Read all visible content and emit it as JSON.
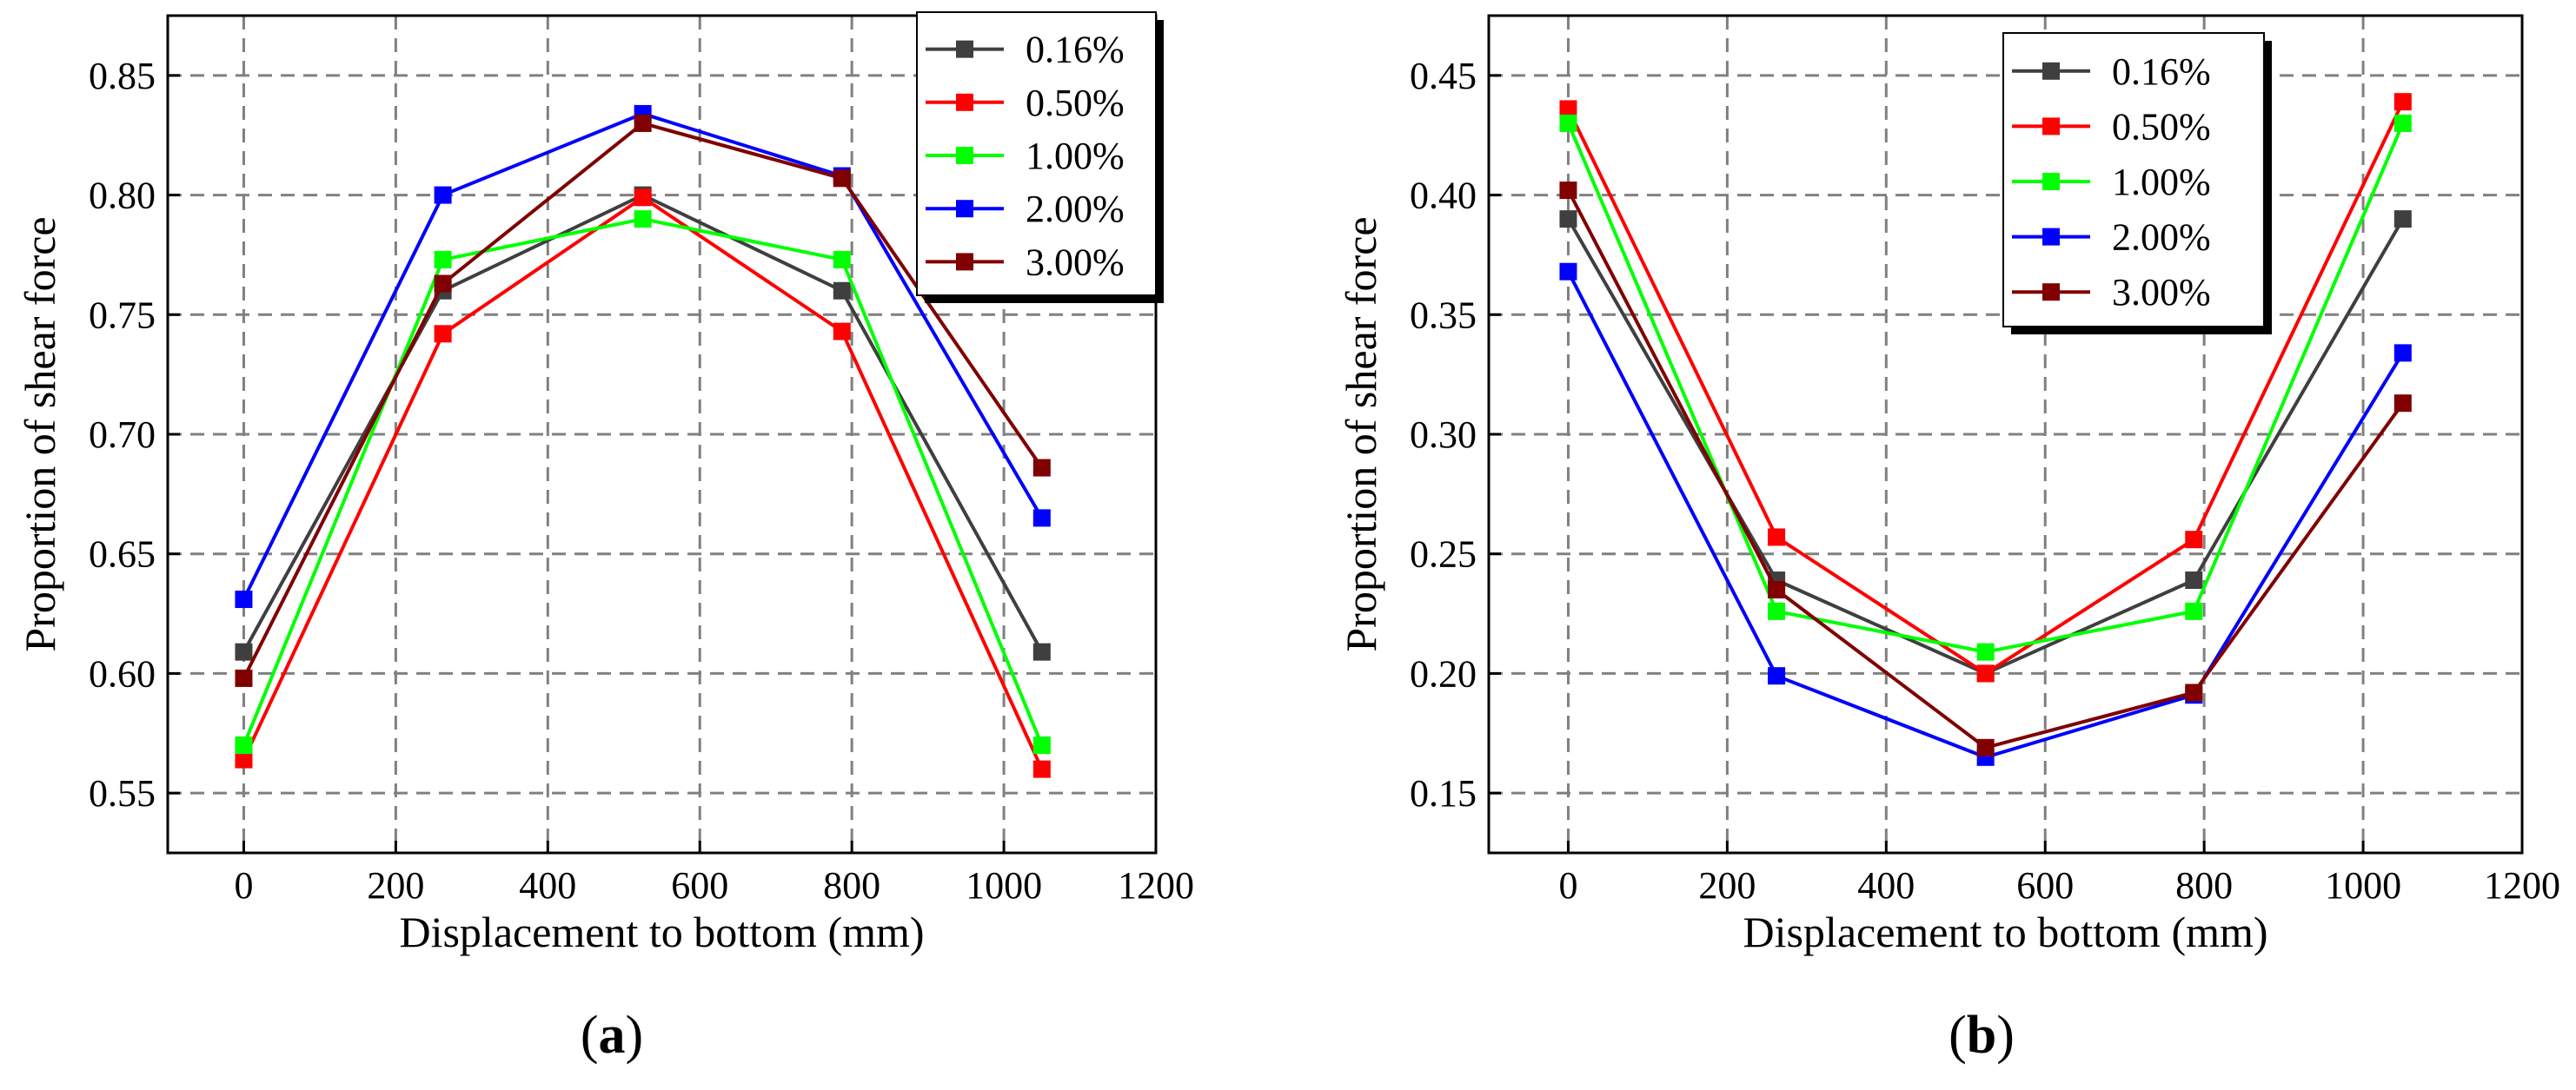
{
  "chart_data": [
    {
      "type": "line",
      "panel_label": {
        "open": "(",
        "letter": "a",
        "close": ")"
      },
      "xlabel": "Displacement to bottom (mm)",
      "ylabel": "Proportion of shear force",
      "xlim": [
        -100,
        1200
      ],
      "ylim": [
        0.525,
        0.875
      ],
      "xticks": [
        0,
        200,
        400,
        600,
        800,
        1000,
        1200
      ],
      "yticks": [
        0.55,
        0.6,
        0.65,
        0.7,
        0.75,
        0.8,
        0.85
      ],
      "ytick_labels": [
        "0.55",
        "0.60",
        "0.65",
        "0.70",
        "0.75",
        "0.80",
        "0.85"
      ],
      "grid": true,
      "legend_position": "top-right",
      "x": [
        0,
        262,
        525,
        787,
        1050
      ],
      "series": [
        {
          "name": "0.16%",
          "color": "#3f3f3f",
          "values": [
            0.609,
            0.76,
            0.8,
            0.76,
            0.609
          ]
        },
        {
          "name": "0.50%",
          "color": "#ff0000",
          "values": [
            0.564,
            0.742,
            0.799,
            0.743,
            0.56
          ]
        },
        {
          "name": "1.00%",
          "color": "#00ff00",
          "values": [
            0.57,
            0.773,
            0.79,
            0.773,
            0.57
          ]
        },
        {
          "name": "2.00%",
          "color": "#0000ff",
          "values": [
            0.631,
            0.8,
            0.834,
            0.808,
            0.665
          ]
        },
        {
          "name": "3.00%",
          "color": "#800000",
          "values": [
            0.598,
            0.763,
            0.83,
            0.807,
            0.686
          ]
        }
      ]
    },
    {
      "type": "line",
      "panel_label": {
        "open": "(",
        "letter": "b",
        "close": ")"
      },
      "xlabel": "Displacement to bottom (mm)",
      "ylabel": "Proportion of shear force",
      "xlim": [
        -100,
        1200
      ],
      "ylim": [
        0.125,
        0.475
      ],
      "xticks": [
        0,
        200,
        400,
        600,
        800,
        1000,
        1200
      ],
      "yticks": [
        0.15,
        0.2,
        0.25,
        0.3,
        0.35,
        0.4,
        0.45
      ],
      "ytick_labels": [
        "0.15",
        "0.20",
        "0.25",
        "0.30",
        "0.35",
        "0.40",
        "0.45"
      ],
      "grid": true,
      "legend_position": "top-center",
      "x": [
        0,
        262,
        525,
        787,
        1050
      ],
      "series": [
        {
          "name": "0.16%",
          "color": "#3f3f3f",
          "values": [
            0.39,
            0.239,
            0.2,
            0.239,
            0.39
          ]
        },
        {
          "name": "0.50%",
          "color": "#ff0000",
          "values": [
            0.436,
            0.257,
            0.2,
            0.256,
            0.439
          ]
        },
        {
          "name": "1.00%",
          "color": "#00ff00",
          "values": [
            0.43,
            0.226,
            0.209,
            0.226,
            0.43
          ]
        },
        {
          "name": "2.00%",
          "color": "#0000ff",
          "values": [
            0.368,
            0.199,
            0.165,
            0.191,
            0.334
          ]
        },
        {
          "name": "3.00%",
          "color": "#800000",
          "values": [
            0.402,
            0.235,
            0.169,
            0.192,
            0.313
          ]
        }
      ]
    }
  ]
}
